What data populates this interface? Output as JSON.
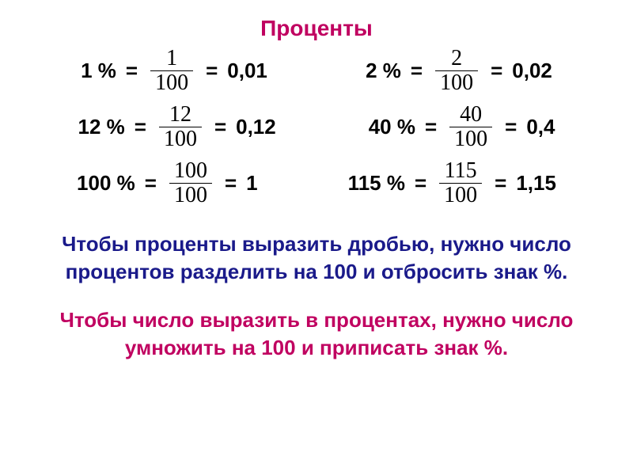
{
  "title": {
    "text": "Проценты",
    "color": "#c00060"
  },
  "equations": {
    "label_color": "#000000",
    "rows": [
      {
        "left": {
          "percent": "1 %",
          "num": "1",
          "den": "100",
          "decimal": "0,01"
        },
        "right": {
          "percent": "2 %",
          "num": "2",
          "den": "100",
          "decimal": "0,02"
        }
      },
      {
        "left": {
          "percent": "12 %",
          "num": "12",
          "den": "100",
          "decimal": "0,12"
        },
        "right": {
          "percent": "40 %",
          "num": "40",
          "den": "100",
          "decimal": "0,4"
        }
      },
      {
        "left": {
          "percent": "100 %",
          "num": "100",
          "den": "100",
          "decimal": "1"
        },
        "right": {
          "percent": "115 %",
          "num": "115",
          "den": "100",
          "decimal": "1,15"
        }
      }
    ]
  },
  "rule1": {
    "text": "Чтобы проценты выразить дробью, нужно число процентов разделить на 100 и отбросить знак %.",
    "color": "#1a1a8a"
  },
  "rule2": {
    "text": "Чтобы число выразить в процентах, нужно число умножить на 100 и приписать знак %.",
    "color": "#c00060"
  },
  "eq_sign": "="
}
